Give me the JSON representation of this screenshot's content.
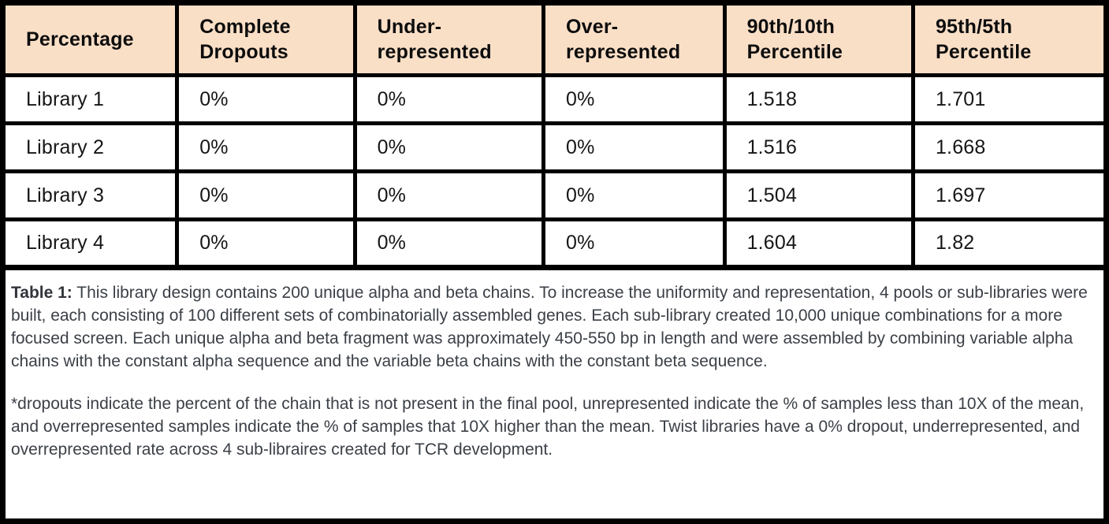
{
  "figure": {
    "colors": {
      "header_bg": "#FADFC7",
      "border": "#000000",
      "cell_text": "#161616",
      "caption_text": "#3B4047"
    }
  },
  "table": {
    "columns": [
      "Percentage",
      "Complete\nDropouts",
      "Under-\nrepresented",
      "Over-\nrepresented",
      "90th/10th\nPercentile",
      "95th/5th\nPercentile"
    ],
    "rows": [
      [
        "Library 1",
        "0%",
        "0%",
        "0%",
        "1.518",
        "1.701"
      ],
      [
        "Library 2",
        "0%",
        "0%",
        "0%",
        "1.516",
        "1.668"
      ],
      [
        "Library 3",
        "0%",
        "0%",
        "0%",
        "1.504",
        "1.697"
      ],
      [
        "Library 4",
        "0%",
        "0%",
        "0%",
        "1.604",
        "1.82"
      ]
    ]
  },
  "caption": {
    "label": "Table 1:",
    "body": "This library design contains 200 unique alpha and beta chains. To increase the uniformity and representation, 4 pools or sub-libraries were built, each consisting of 100 different sets of combinatorially assembled genes. Each sub-library created 10,000 unique combinations for a more focused screen. Each unique alpha and beta fragment was approximately 450-550 bp in length and were assembled by combining variable alpha chains with the constant alpha sequence and the variable beta chains with the constant beta sequence.",
    "footnote": "*dropouts indicate the percent of the chain that is not present in the final pool, unrepresented indicate the % of samples less than 10X of the mean, and overrepresented samples indicate the % of samples that 10X higher than the mean. Twist libraries have a 0% dropout, underrepresented, and overrepresented rate across 4 sub-libraires created for TCR development."
  }
}
